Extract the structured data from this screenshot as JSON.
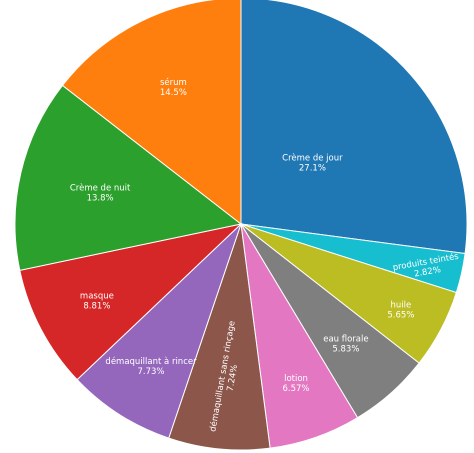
{
  "chart_data": {
    "type": "pie",
    "title": "",
    "start_angle_deg": 90,
    "direction": "clockwise",
    "slices": [
      {
        "label": "Crème de jour",
        "value": 27.1,
        "display": "27.1%",
        "color": "#1f77b4"
      },
      {
        "label": "produits teintés",
        "value": 2.82,
        "display": "2.82%",
        "color": "#17becf"
      },
      {
        "label": "huile",
        "value": 5.65,
        "display": "5.65%",
        "color": "#bcbd22"
      },
      {
        "label": "eau florale",
        "value": 5.83,
        "display": "5.83%",
        "color": "#7f7f7f"
      },
      {
        "label": "lotion",
        "value": 6.57,
        "display": "6.57%",
        "color": "#e377c2"
      },
      {
        "label": "démaquillant sans rinçage",
        "value": 7.24,
        "display": "7.24%",
        "color": "#8c564b"
      },
      {
        "label": "démaquillant à rincer",
        "value": 7.73,
        "display": "7.73%",
        "color": "#9467bd"
      },
      {
        "label": "masque",
        "value": 8.81,
        "display": "8.81%",
        "color": "#d62728"
      },
      {
        "label": "Crème de nuit",
        "value": 13.8,
        "display": "13.8%",
        "color": "#2ca02c"
      },
      {
        "label": "sérum",
        "value": 14.5,
        "display": "14.5%",
        "color": "#ff7f0e"
      }
    ]
  }
}
